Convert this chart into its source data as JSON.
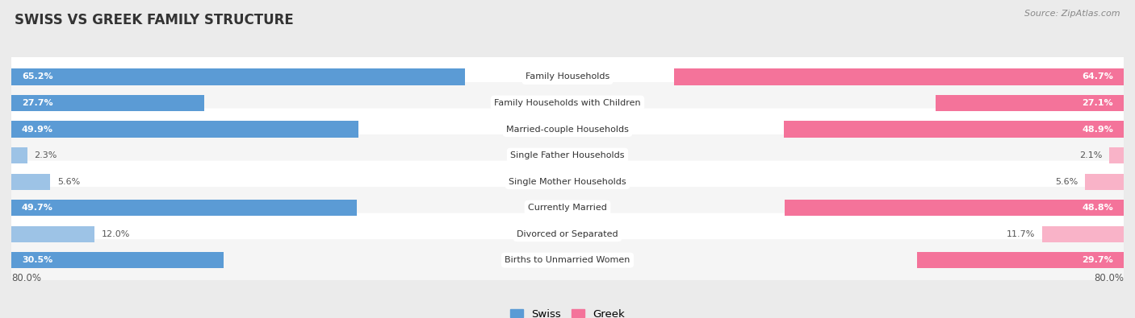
{
  "title": "SWISS VS GREEK FAMILY STRUCTURE",
  "source": "Source: ZipAtlas.com",
  "categories": [
    "Family Households",
    "Family Households with Children",
    "Married-couple Households",
    "Single Father Households",
    "Single Mother Households",
    "Currently Married",
    "Divorced or Separated",
    "Births to Unmarried Women"
  ],
  "swiss_values": [
    65.2,
    27.7,
    49.9,
    2.3,
    5.6,
    49.7,
    12.0,
    30.5
  ],
  "greek_values": [
    64.7,
    27.1,
    48.9,
    2.1,
    5.6,
    48.8,
    11.7,
    29.7
  ],
  "swiss_color_dark": "#5B9BD5",
  "swiss_color_light": "#9DC3E6",
  "greek_color_dark": "#F4739A",
  "greek_color_light": "#F9B3C8",
  "bg_color": "#EBEBEB",
  "row_bg_light": "#F5F5F5",
  "row_bg_white": "#FFFFFF",
  "axis_limit": 80.0,
  "legend_swiss": "Swiss",
  "legend_greek": "Greek",
  "label_threshold": 20.0
}
